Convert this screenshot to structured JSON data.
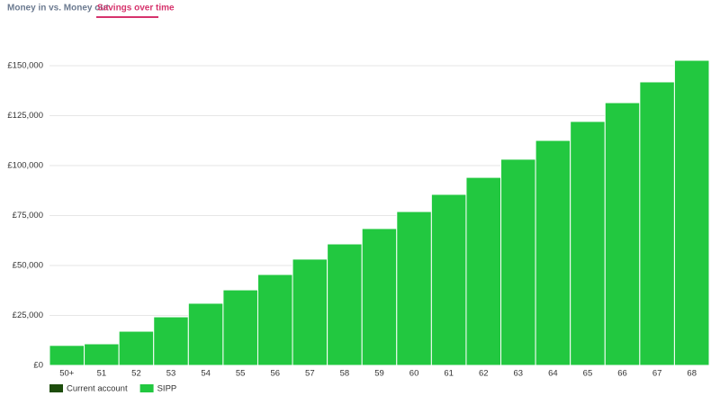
{
  "tabs": [
    "Money in vs. Money out",
    "Savings over time"
  ],
  "chart_data": {
    "type": "stacked-bar",
    "categories": [
      "50+",
      "51",
      "52",
      "53",
      "54",
      "55",
      "56",
      "57",
      "58",
      "59",
      "60",
      "61",
      "62",
      "63",
      "64",
      "65",
      "66",
      "67",
      "68"
    ],
    "series": [
      {
        "name": "Current account",
        "color": "#1d4d0c",
        "values": [
          0,
          0,
          0,
          0,
          0,
          0,
          0,
          0,
          0,
          0,
          0,
          0,
          0,
          0,
          0,
          0,
          0,
          0,
          0
        ]
      },
      {
        "name": "SIPP",
        "color": "#22c840",
        "values": [
          10000,
          10800,
          17100,
          24300,
          31100,
          37800,
          45500,
          53200,
          60800,
          68500,
          77000,
          85600,
          94100,
          103200,
          112600,
          122100,
          131500,
          141900,
          152700
        ]
      }
    ],
    "ylim": [
      0,
      150000
    ],
    "yticks": [
      {
        "value": 0,
        "label": "£0"
      },
      {
        "value": 25000,
        "label": "£25,000"
      },
      {
        "value": 50000,
        "label": "£50,000"
      },
      {
        "value": 75000,
        "label": "£75,000"
      },
      {
        "value": 100000,
        "label": "£100,000"
      },
      {
        "value": 125000,
        "label": "£125,000"
      },
      {
        "value": 150000,
        "label": "£150,000"
      }
    ],
    "grid": true
  }
}
